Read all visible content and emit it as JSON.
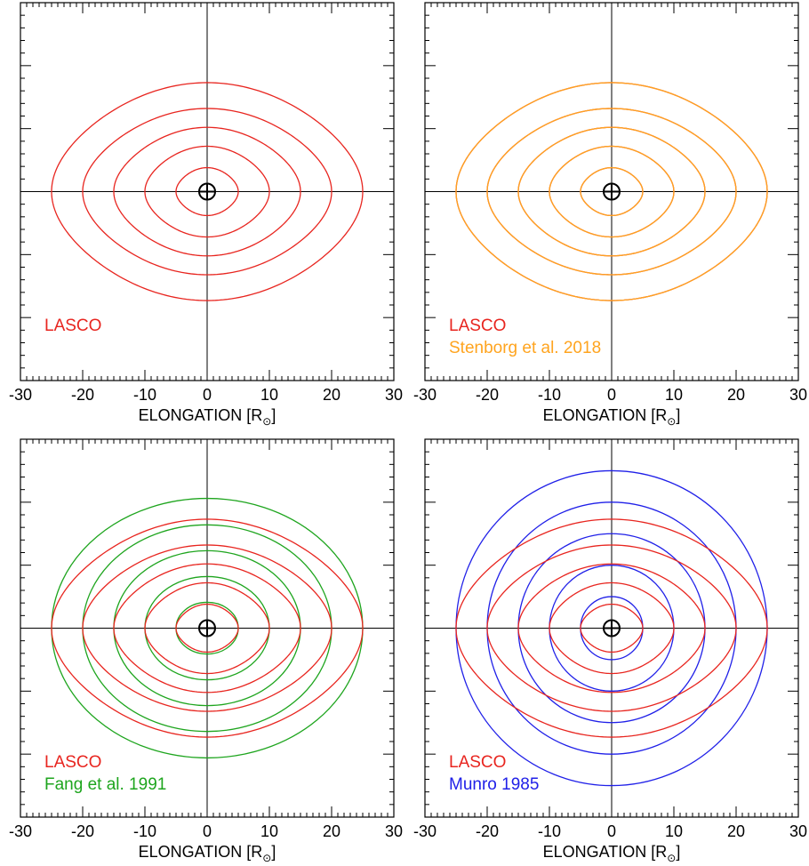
{
  "figure": {
    "xlabel": "ELONGATION [R",
    "xlabel_sub": "⊙",
    "xlabel_close": "]"
  },
  "colors": {
    "axis": "#000000",
    "LASCO": "#e8251f",
    "Stenborg et al. 2018": "#ffa41f",
    "Fang et al. 1991": "#1ea51e",
    "Munro 1985": "#2020e8"
  },
  "chart_data": [
    {
      "type": "line",
      "panel": "top-left",
      "xlabel": "ELONGATION [R⊙]",
      "xlim": [
        -30,
        30
      ],
      "ylim": [
        -30,
        30
      ],
      "xticks": [
        "-30",
        "-20",
        "-10",
        "0",
        "10",
        "20",
        "30"
      ],
      "legend": [
        "LASCO"
      ],
      "grid": false,
      "sun_symbol": true,
      "series": [
        {
          "name": "LASCO",
          "shape": "lasco",
          "radii": [
            5,
            10,
            15,
            20,
            25
          ],
          "vertical_extents": [
            3.8,
            7.2,
            10.2,
            13.2,
            17.3
          ]
        }
      ]
    },
    {
      "type": "line",
      "panel": "top-right",
      "xlabel": "ELONGATION [R⊙]",
      "xlim": [
        -30,
        30
      ],
      "ylim": [
        -30,
        30
      ],
      "xticks": [
        "-30",
        "-20",
        "-10",
        "0",
        "10",
        "20",
        "30"
      ],
      "legend": [
        "LASCO",
        "Stenborg et al. 2018"
      ],
      "grid": false,
      "sun_symbol": true,
      "series": [
        {
          "name": "LASCO",
          "shape": "lasco",
          "radii": [
            5,
            10,
            15,
            20,
            25
          ],
          "vertical_extents": [
            3.8,
            7.2,
            10.2,
            13.2,
            17.3
          ]
        },
        {
          "name": "Stenborg et al. 2018",
          "shape": "lasco",
          "radii": [
            5,
            10,
            15,
            20,
            25
          ],
          "vertical_extents": [
            3.8,
            7.2,
            10.2,
            13.2,
            17.3
          ]
        }
      ]
    },
    {
      "type": "line",
      "panel": "bottom-left",
      "xlabel": "ELONGATION [R⊙]",
      "xlim": [
        -30,
        30
      ],
      "ylim": [
        -30,
        30
      ],
      "xticks": [
        "-30",
        "-20",
        "-10",
        "0",
        "10",
        "20",
        "30"
      ],
      "legend": [
        "LASCO",
        "Fang et al. 1991"
      ],
      "grid": false,
      "sun_symbol": true,
      "series": [
        {
          "name": "LASCO",
          "shape": "lasco",
          "radii": [
            5,
            10,
            15,
            20,
            25
          ],
          "vertical_extents": [
            3.8,
            7.2,
            10.2,
            13.2,
            17.3
          ]
        },
        {
          "name": "Fang et al. 1991",
          "shape": "ellipse",
          "radii": [
            5,
            10,
            15,
            20,
            25
          ],
          "vertical_extents": [
            4.1,
            8.2,
            12.3,
            16.4,
            20.6
          ]
        }
      ]
    },
    {
      "type": "line",
      "panel": "bottom-right",
      "xlabel": "ELONGATION [R⊙]",
      "xlim": [
        -30,
        30
      ],
      "ylim": [
        -30,
        30
      ],
      "xticks": [
        "-30",
        "-20",
        "-10",
        "0",
        "10",
        "20",
        "30"
      ],
      "legend": [
        "LASCO",
        "Munro 1985"
      ],
      "grid": false,
      "sun_symbol": true,
      "series": [
        {
          "name": "LASCO",
          "shape": "lasco",
          "radii": [
            5,
            10,
            15,
            20,
            25
          ],
          "vertical_extents": [
            3.8,
            7.2,
            10.2,
            13.2,
            17.3
          ]
        },
        {
          "name": "Munro 1985",
          "shape": "circle",
          "radii": [
            5,
            10,
            15,
            20,
            25
          ],
          "vertical_extents": [
            5,
            10,
            15,
            20,
            25
          ]
        }
      ]
    }
  ]
}
